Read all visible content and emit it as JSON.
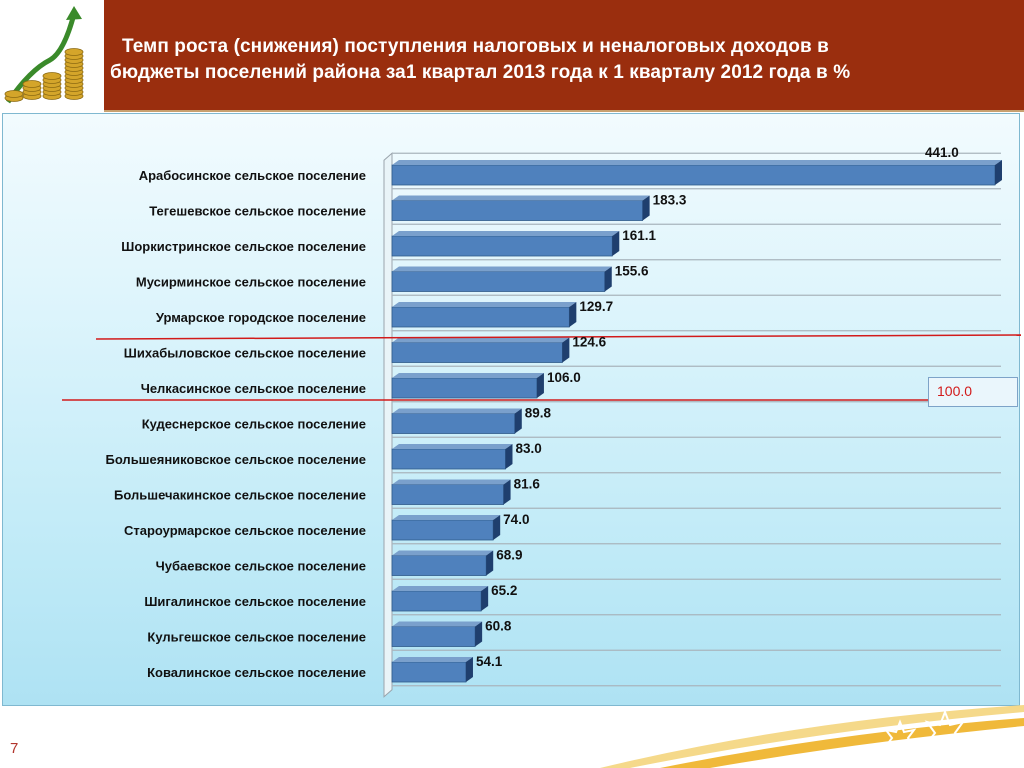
{
  "header": {
    "title_line1": "Темп роста (снижения) поступления  налоговых и неналоговых доходов в",
    "title_line2": "бюджеты поселений района за1 квартал 2013 года к 1 кварталу 2012 года в %",
    "background": "#9a2e0e"
  },
  "logo": {
    "icon": "money-growth-icon"
  },
  "chart_data": {
    "type": "bar",
    "orientation": "horizontal",
    "categories": [
      "Арабосинское сельское поселение",
      "Тегешевское  сельское поселение",
      "Шоркистринское  сельское поселение",
      "Мусирминское  сельское поселение",
      "Урмарское  городское поселение",
      "Шихабыловское  сельское поселение",
      "Челкасинское  сельское поселение",
      "Кудеснерское  сельское поселение",
      "Большеяниковское  сельское поселение",
      "Большечакинское  сельское поселение",
      "Староурмарское  сельское поселение",
      "Чубаевское  сельское поселение",
      "Шигалинское  сельское поселение",
      "Кульгешское  сельское поселение",
      "Ковалинское  сельское поселение"
    ],
    "values": [
      441.0,
      183.3,
      161.1,
      155.6,
      129.7,
      124.6,
      106.0,
      89.8,
      83.0,
      81.6,
      74.0,
      68.9,
      65.2,
      60.8,
      54.1
    ],
    "value_labels": [
      "441.0",
      "183.3",
      "161.1",
      "155.6",
      "129.7",
      "124.6",
      "106.0",
      "89.8",
      "83.0",
      "81.6",
      "74.0",
      "68.9",
      "65.2",
      "60.8",
      "54.1"
    ],
    "xlim": [
      0,
      441
    ],
    "gridlines": true,
    "bar_color": "#4f81bd",
    "reference": {
      "value": 100,
      "label": "100.0",
      "color": "#d21a1a"
    }
  },
  "footer": {
    "page_number": "7",
    "icon": "star-ornament-icon"
  }
}
